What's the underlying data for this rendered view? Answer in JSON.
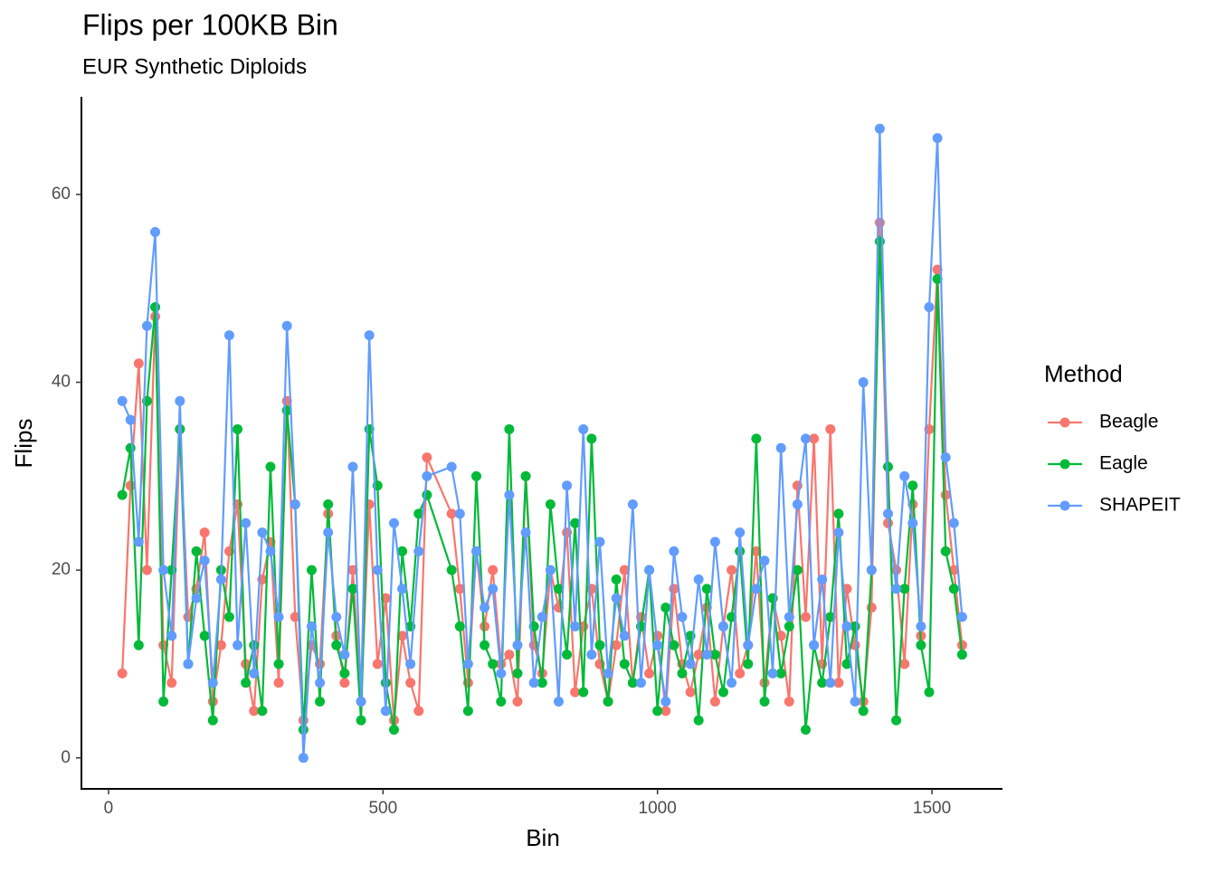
{
  "chart_data": {
    "type": "line",
    "title": "Flips per 100KB Bin",
    "subtitle": "EUR Synthetic Diploids",
    "x_label": "Bin",
    "y_label": "Flips",
    "legend_title": "Method",
    "legend_position": "right",
    "grid": false,
    "xlim": [
      -49.4,
      1628.5
    ],
    "ylim": [
      -3.3,
      70.4
    ],
    "xticks": [
      0,
      500,
      1000,
      1500
    ],
    "yticks": [
      0,
      20,
      40,
      60
    ],
    "x": [
      25,
      40,
      55,
      70,
      85,
      100,
      115,
      130,
      145,
      160,
      175,
      190,
      205,
      220,
      235,
      250,
      265,
      280,
      295,
      310,
      325,
      340,
      355,
      370,
      385,
      400,
      415,
      430,
      445,
      460,
      475,
      490,
      505,
      520,
      535,
      550,
      565,
      580,
      625,
      640,
      655,
      670,
      685,
      700,
      715,
      730,
      745,
      760,
      775,
      790,
      805,
      820,
      835,
      850,
      865,
      880,
      895,
      910,
      925,
      940,
      955,
      970,
      985,
      1000,
      1015,
      1030,
      1045,
      1060,
      1075,
      1090,
      1105,
      1120,
      1135,
      1150,
      1165,
      1180,
      1195,
      1210,
      1225,
      1240,
      1255,
      1270,
      1285,
      1300,
      1315,
      1330,
      1345,
      1360,
      1375,
      1390,
      1405,
      1420,
      1435,
      1450,
      1465,
      1480,
      1495,
      1510,
      1525,
      1540,
      1555
    ],
    "series": [
      {
        "name": "Beagle",
        "color": "#F8766D",
        "values": [
          9,
          29,
          42,
          20,
          47,
          12,
          8,
          35,
          15,
          18,
          24,
          6,
          12,
          22,
          27,
          10,
          5,
          19,
          23,
          8,
          38,
          15,
          4,
          12,
          10,
          26,
          13,
          8,
          20,
          6,
          27,
          10,
          17,
          4,
          13,
          8,
          5,
          32,
          26,
          18,
          8,
          22,
          14,
          20,
          10,
          11,
          6,
          30,
          12,
          9,
          20,
          16,
          24,
          7,
          14,
          18,
          10,
          6,
          12,
          20,
          8,
          15,
          9,
          13,
          5,
          18,
          10,
          7,
          11,
          16,
          6,
          14,
          20,
          9,
          12,
          22,
          8,
          17,
          13,
          6,
          29,
          15,
          34,
          10,
          35,
          8,
          18,
          12,
          6,
          16,
          57,
          25,
          20,
          10,
          27,
          13,
          35,
          52,
          28,
          20,
          12
        ]
      },
      {
        "name": "Eagle",
        "color": "#00BA38",
        "values": [
          28,
          33,
          12,
          38,
          48,
          6,
          20,
          35,
          10,
          22,
          13,
          4,
          20,
          15,
          35,
          8,
          12,
          5,
          31,
          10,
          37,
          27,
          3,
          20,
          6,
          27,
          12,
          9,
          18,
          4,
          35,
          29,
          8,
          3,
          22,
          14,
          26,
          28,
          20,
          14,
          5,
          30,
          12,
          10,
          6,
          35,
          9,
          30,
          14,
          8,
          27,
          18,
          11,
          25,
          7,
          34,
          12,
          6,
          19,
          10,
          8,
          14,
          20,
          5,
          16,
          12,
          9,
          13,
          4,
          18,
          11,
          7,
          15,
          22,
          10,
          34,
          6,
          17,
          9,
          14,
          20,
          3,
          12,
          8,
          15,
          26,
          10,
          14,
          5,
          20,
          55,
          31,
          4,
          18,
          29,
          12,
          7,
          51,
          22,
          18,
          11
        ]
      },
      {
        "name": "SHAPEIT",
        "color": "#619CFF",
        "values": [
          38,
          36,
          23,
          46,
          56,
          20,
          13,
          38,
          10,
          17,
          21,
          8,
          19,
          45,
          12,
          25,
          9,
          24,
          22,
          15,
          46,
          27,
          0,
          14,
          8,
          24,
          15,
          11,
          31,
          6,
          45,
          20,
          5,
          25,
          18,
          10,
          22,
          30,
          31,
          26,
          10,
          22,
          16,
          18,
          9,
          28,
          12,
          24,
          8,
          15,
          20,
          6,
          29,
          14,
          35,
          11,
          23,
          9,
          17,
          13,
          27,
          8,
          20,
          12,
          6,
          22,
          15,
          10,
          19,
          11,
          23,
          14,
          8,
          24,
          12,
          18,
          21,
          9,
          33,
          15,
          27,
          34,
          12,
          19,
          8,
          24,
          14,
          6,
          40,
          20,
          67,
          26,
          18,
          30,
          25,
          14,
          48,
          66,
          32,
          25,
          15
        ]
      }
    ]
  }
}
